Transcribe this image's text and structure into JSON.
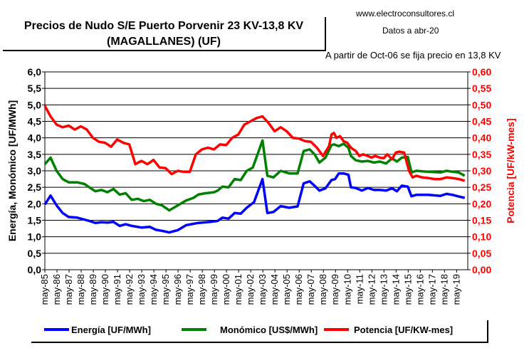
{
  "header": {
    "title_line1": "Precios de Nudo S/E Puerto Porvenir 23 KV-13,8 KV",
    "title_line2": "(MAGALLANES) (UF)",
    "site": "www.electroconsultores.cl",
    "date_note": "Datos a abr-20",
    "note": "A partir de Oct-06 se fija precio en 13,8 KV"
  },
  "colors": {
    "energia": "#0000ff",
    "monomico": "#008000",
    "potencia": "#ff0000"
  },
  "chart_data": {
    "type": "line",
    "xlabel": "",
    "ylabel_left": "Energía, Monómico [UF/MWh]",
    "ylabel_right": "Potencia [UF/kW-mes]",
    "ylim_left": [
      0,
      6
    ],
    "ylim_right": [
      0,
      0.6
    ],
    "x_range": [
      1985.33,
      2020.25
    ],
    "yticks_left": [
      "0,0",
      "0,5",
      "1,0",
      "1,5",
      "2,0",
      "2,5",
      "3,0",
      "3,5",
      "4,0",
      "4,5",
      "5,0",
      "5,5",
      "6,0"
    ],
    "yticks_right": [
      "0,00",
      "0,05",
      "0,10",
      "0,15",
      "0,20",
      "0,25",
      "0,30",
      "0,35",
      "0,40",
      "0,45",
      "0,50",
      "0,55",
      "0,60"
    ],
    "xticks": [
      "may-85",
      "may-86",
      "may-87",
      "may-88",
      "may-89",
      "may-90",
      "may-91",
      "may-92",
      "may-93",
      "may-94",
      "may-95",
      "may-96",
      "may-97",
      "may-98",
      "may-99",
      "may-00",
      "may-01",
      "may-02",
      "may-03",
      "may-04",
      "may-05",
      "may-06",
      "may-07",
      "may-08",
      "may-09",
      "may-10",
      "may-11",
      "may-12",
      "may-13",
      "may-14",
      "may-15",
      "may-16",
      "may-17",
      "may-18",
      "may-19"
    ],
    "series": [
      {
        "name": "Energía [UF/MWh]",
        "axis": "left",
        "x": [
          1985.33,
          1985.8,
          1986.3,
          1986.8,
          1987.3,
          1988.0,
          1989.0,
          1989.5,
          1990.0,
          1990.5,
          1991.0,
          1991.5,
          1992.0,
          1992.5,
          1993.3,
          1994.0,
          1994.5,
          1995.0,
          1995.6,
          1996.3,
          1997.0,
          1998.0,
          1999.0,
          1999.6,
          2000.0,
          2000.5,
          2001.0,
          2001.5,
          2002.0,
          2002.6,
          2003.3,
          2003.7,
          2004.2,
          2004.8,
          2005.5,
          2006.2,
          2006.7,
          2007.2,
          2007.6,
          2008.0,
          2008.5,
          2009.0,
          2009.3,
          2009.6,
          2010.0,
          2010.4,
          2010.6,
          2011.0,
          2011.5,
          2012.0,
          2012.5,
          2013.0,
          2013.5,
          2014.0,
          2014.4,
          2014.8,
          2015.3,
          2015.6,
          2016.0,
          2017.0,
          2018.0,
          2018.5,
          2019.0,
          2019.5,
          2020.0
        ],
        "values": [
          1.98,
          2.25,
          1.95,
          1.72,
          1.6,
          1.58,
          1.48,
          1.42,
          1.44,
          1.43,
          1.45,
          1.33,
          1.38,
          1.33,
          1.28,
          1.3,
          1.21,
          1.18,
          1.13,
          1.2,
          1.35,
          1.42,
          1.45,
          1.48,
          1.58,
          1.55,
          1.72,
          1.7,
          1.88,
          2.05,
          2.75,
          1.72,
          1.75,
          1.93,
          1.88,
          1.92,
          2.62,
          2.68,
          2.55,
          2.4,
          2.47,
          2.72,
          2.75,
          2.92,
          2.92,
          2.88,
          2.5,
          2.48,
          2.4,
          2.48,
          2.42,
          2.42,
          2.4,
          2.47,
          2.38,
          2.55,
          2.52,
          2.23,
          2.27,
          2.27,
          2.24,
          2.3,
          2.27,
          2.22,
          2.18
        ]
      },
      {
        "name": "Monómico [US$/MWh]",
        "axis": "left",
        "x": [
          1985.33,
          1985.8,
          1986.3,
          1986.8,
          1987.3,
          1988.0,
          1988.6,
          1989.0,
          1989.5,
          1990.0,
          1990.5,
          1991.0,
          1991.5,
          1992.0,
          1992.5,
          1993.0,
          1993.5,
          1994.0,
          1994.5,
          1995.0,
          1995.6,
          1996.3,
          1997.0,
          1997.6,
          1998.0,
          1998.6,
          1999.3,
          1999.6,
          2000.0,
          2000.5,
          2001.0,
          2001.5,
          2002.0,
          2002.5,
          2003.3,
          2003.7,
          2004.2,
          2004.8,
          2005.5,
          2006.2,
          2006.7,
          2007.2,
          2007.6,
          2008.0,
          2008.5,
          2009.0,
          2009.2,
          2009.6,
          2010.0,
          2010.4,
          2010.6,
          2011.0,
          2011.5,
          2012.0,
          2012.5,
          2013.0,
          2013.5,
          2014.0,
          2014.4,
          2014.8,
          2015.3,
          2015.6,
          2016.0,
          2017.0,
          2018.0,
          2018.5,
          2019.0,
          2019.5,
          2020.0
        ],
        "values": [
          3.2,
          3.4,
          3.0,
          2.75,
          2.65,
          2.65,
          2.6,
          2.5,
          2.38,
          2.42,
          2.35,
          2.45,
          2.28,
          2.32,
          2.12,
          2.15,
          2.08,
          2.12,
          2.0,
          1.95,
          1.8,
          1.95,
          2.1,
          2.18,
          2.28,
          2.32,
          2.35,
          2.4,
          2.52,
          2.5,
          2.75,
          2.72,
          3.0,
          3.1,
          3.92,
          2.85,
          2.8,
          3.0,
          2.92,
          2.92,
          3.6,
          3.65,
          3.5,
          3.25,
          3.4,
          3.78,
          3.8,
          3.75,
          3.82,
          3.7,
          3.45,
          3.32,
          3.28,
          3.3,
          3.25,
          3.28,
          3.22,
          3.38,
          3.28,
          3.4,
          3.42,
          2.95,
          3.0,
          2.97,
          2.95,
          3.0,
          2.97,
          2.95,
          2.85
        ]
      },
      {
        "name": "Potencia [UF/KW-mes]",
        "axis": "right",
        "x": [
          1985.33,
          1985.8,
          1986.3,
          1986.8,
          1987.3,
          1987.8,
          1988.3,
          1988.8,
          1989.3,
          1989.8,
          1990.3,
          1990.8,
          1991.3,
          1991.8,
          1992.3,
          1992.8,
          1993.3,
          1993.8,
          1994.3,
          1994.8,
          1995.3,
          1995.8,
          1996.3,
          1996.8,
          1997.3,
          1997.8,
          1998.3,
          1998.8,
          1999.3,
          1999.8,
          2000.3,
          2000.8,
          2001.3,
          2001.8,
          2002.3,
          2002.8,
          2003.3,
          2003.8,
          2004.3,
          2004.8,
          2005.3,
          2005.8,
          2006.3,
          2006.8,
          2007.3,
          2007.8,
          2008.3,
          2008.8,
          2009.0,
          2009.2,
          2009.4,
          2009.7,
          2010.0,
          2010.3,
          2010.6,
          2011.0,
          2011.3,
          2011.6,
          2012.0,
          2012.3,
          2012.6,
          2013.0,
          2013.3,
          2013.6,
          2014.0,
          2014.3,
          2014.6,
          2015.0,
          2015.4,
          2015.7,
          2016.0,
          2016.5,
          2017.0,
          2017.5,
          2018.0,
          2018.5,
          2019.0,
          2019.5,
          2020.0
        ],
        "values": [
          0.497,
          0.465,
          0.44,
          0.432,
          0.437,
          0.425,
          0.435,
          0.425,
          0.4,
          0.388,
          0.385,
          0.373,
          0.395,
          0.385,
          0.38,
          0.32,
          0.33,
          0.32,
          0.333,
          0.31,
          0.308,
          0.29,
          0.3,
          0.297,
          0.297,
          0.35,
          0.365,
          0.37,
          0.365,
          0.38,
          0.378,
          0.4,
          0.41,
          0.44,
          0.45,
          0.46,
          0.465,
          0.445,
          0.42,
          0.432,
          0.42,
          0.4,
          0.398,
          0.39,
          0.388,
          0.37,
          0.345,
          0.375,
          0.41,
          0.415,
          0.4,
          0.405,
          0.39,
          0.385,
          0.37,
          0.36,
          0.345,
          0.35,
          0.345,
          0.34,
          0.345,
          0.34,
          0.338,
          0.35,
          0.335,
          0.355,
          0.358,
          0.355,
          0.3,
          0.28,
          0.285,
          0.28,
          0.278,
          0.275,
          0.275,
          0.28,
          0.278,
          0.275,
          0.27
        ]
      }
    ]
  },
  "legend": {
    "energia": "Energía [UF/MWh]",
    "monomico": "Monómico [US$/MWh]",
    "potencia": "Potencia [UF/KW-mes]"
  }
}
